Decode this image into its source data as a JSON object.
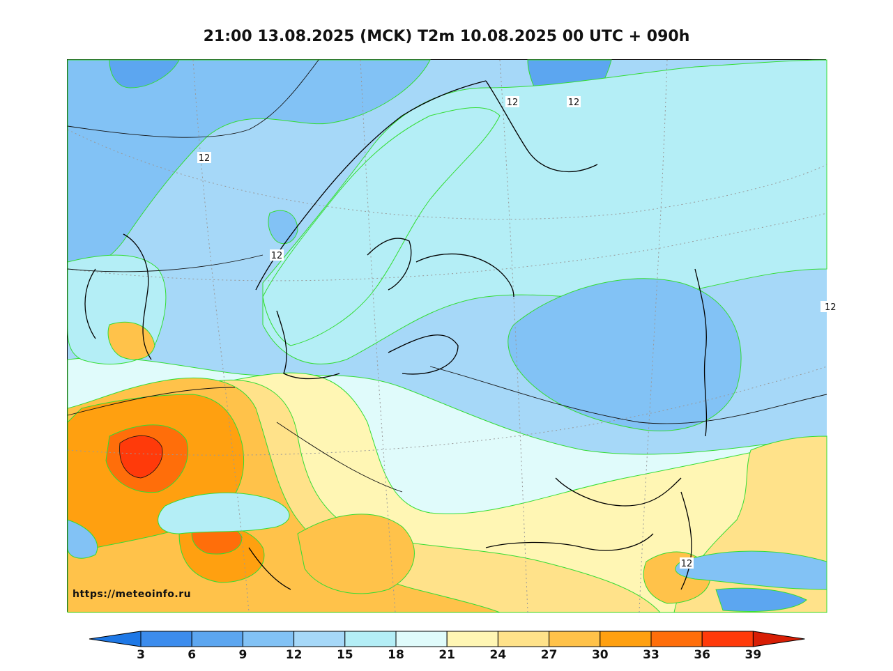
{
  "title": "21:00 13.08.2025 (MCK) T2m 10.08.2025 00 UTC + 090h",
  "watermark": "https://meteoinfo.ru",
  "contour_labels": [
    "12",
    "12",
    "12",
    "12",
    "12",
    "12"
  ],
  "colorbar": {
    "ticks": [
      "3",
      "6",
      "9",
      "12",
      "15",
      "18",
      "21",
      "24",
      "27",
      "30",
      "33",
      "36",
      "39"
    ],
    "colors": [
      "#1e78e6",
      "#3c8ced",
      "#5ca6f0",
      "#82c2f5",
      "#a6d8f8",
      "#b4eef6",
      "#e0fbfb",
      "#fff6b4",
      "#ffe28a",
      "#ffc24a",
      "#ffa010",
      "#ff6e0a",
      "#ff3a0a",
      "#d81e05"
    ]
  }
}
